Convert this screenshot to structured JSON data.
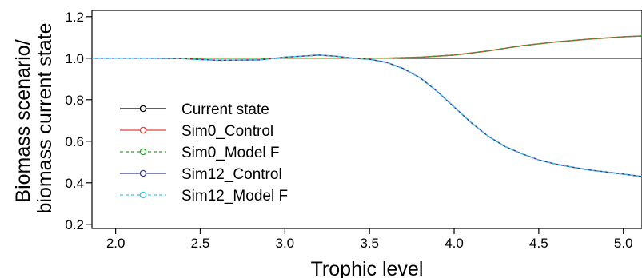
{
  "chart_data": {
    "type": "line",
    "xlabel": "Trophic level",
    "ylabel": [
      "Biomass scenario/",
      "biomass current state"
    ],
    "xlim": [
      1.86,
      5.11
    ],
    "ylim": [
      0.18,
      1.23
    ],
    "xticks": [
      "2.0",
      "2.5",
      "3.0",
      "3.5",
      "4.0",
      "4.5",
      "5.0"
    ],
    "yticks": [
      "0.2",
      "0.4",
      "0.6",
      "0.8",
      "1.0",
      "1.2"
    ],
    "grid": false,
    "legend_position": "left",
    "series": [
      {
        "name": "Current state",
        "color": "#000000",
        "dashed": false,
        "x": [
          1.86,
          5.11
        ],
        "y": [
          1.0,
          1.0
        ]
      },
      {
        "name": "Sim0_Control",
        "color": "#e8413c",
        "dashed": false,
        "x": [
          1.86,
          2.2,
          2.5,
          2.8,
          3.0,
          3.2,
          3.4,
          3.6,
          3.8,
          4.0,
          4.2,
          4.4,
          4.6,
          4.8,
          5.0,
          5.11
        ],
        "y": [
          1.0,
          1.0,
          1.0,
          1.0,
          1.0,
          1.0,
          1.0,
          1.0,
          1.005,
          1.015,
          1.035,
          1.06,
          1.078,
          1.092,
          1.103,
          1.107
        ]
      },
      {
        "name": "Sim0_Model F",
        "color": "#2ca02c",
        "dashed": true,
        "x": [
          1.86,
          2.2,
          2.5,
          2.8,
          3.0,
          3.2,
          3.4,
          3.6,
          3.8,
          4.0,
          4.2,
          4.4,
          4.6,
          4.8,
          5.0,
          5.11
        ],
        "y": [
          1.0,
          1.0,
          1.0,
          1.0,
          1.0,
          1.0,
          1.0,
          1.0,
          1.005,
          1.015,
          1.035,
          1.06,
          1.078,
          1.092,
          1.103,
          1.107
        ]
      },
      {
        "name": "Sim12_Control",
        "color": "#3a3a9e",
        "dashed": false,
        "x": [
          1.86,
          2.2,
          2.4,
          2.6,
          2.85,
          3.0,
          3.1,
          3.2,
          3.3,
          3.4,
          3.5,
          3.6,
          3.7,
          3.8,
          3.9,
          4.0,
          4.1,
          4.2,
          4.3,
          4.4,
          4.5,
          4.6,
          4.7,
          4.8,
          4.9,
          5.0,
          5.11
        ],
        "y": [
          1.0,
          1.0,
          0.998,
          0.99,
          0.992,
          1.005,
          1.01,
          1.015,
          1.01,
          1.0,
          0.995,
          0.98,
          0.95,
          0.905,
          0.84,
          0.765,
          0.69,
          0.625,
          0.575,
          0.54,
          0.51,
          0.49,
          0.475,
          0.462,
          0.452,
          0.442,
          0.43
        ]
      },
      {
        "name": "Sim12_Model F",
        "color": "#3ec6e0",
        "dashed": true,
        "x": [
          1.86,
          2.2,
          2.4,
          2.6,
          2.85,
          3.0,
          3.1,
          3.2,
          3.3,
          3.4,
          3.5,
          3.6,
          3.7,
          3.8,
          3.9,
          4.0,
          4.1,
          4.2,
          4.3,
          4.4,
          4.5,
          4.6,
          4.7,
          4.8,
          4.9,
          5.0,
          5.11
        ],
        "y": [
          1.0,
          1.0,
          0.998,
          0.99,
          0.992,
          1.005,
          1.01,
          1.015,
          1.01,
          1.0,
          0.995,
          0.98,
          0.95,
          0.905,
          0.84,
          0.765,
          0.69,
          0.625,
          0.575,
          0.54,
          0.51,
          0.49,
          0.475,
          0.462,
          0.452,
          0.442,
          0.43
        ]
      }
    ]
  }
}
